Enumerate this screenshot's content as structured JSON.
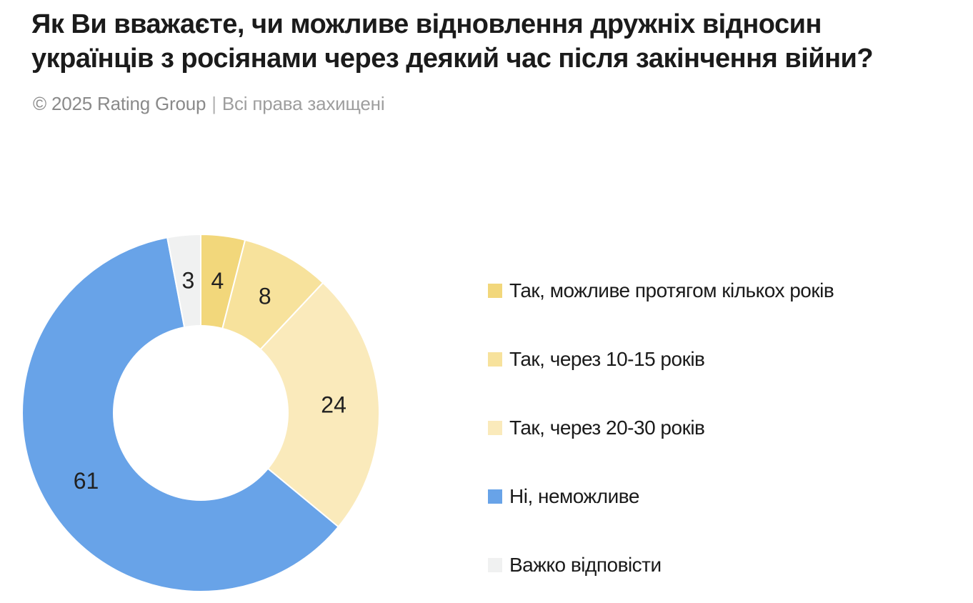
{
  "header": {
    "title_lines": [
      "Як Ви вважаєте, чи можливе відновлення дружніх відносин",
      "українців з росіянами через деякий час після закінчення війни?"
    ],
    "copyright": "© 2025 Rating Group",
    "separator": "|",
    "rights_text": "Всі права захищені"
  },
  "chart_data": {
    "type": "pie",
    "variant": "donut",
    "title": "Як Ви вважаєте, чи можливе відновлення дружніх відносин українців з росіянами через деякий час після закінчення війни?",
    "unit": "percent",
    "categories": [
      "Так, можливе протягом кількох років",
      "Так, через 10-15 років",
      "Так, через 20-30 років",
      "Ні, неможливе",
      "Важко відповісти"
    ],
    "values": [
      4,
      8,
      24,
      61,
      3
    ],
    "colors": [
      "#F2D77B",
      "#F7E29C",
      "#FAEABB",
      "#68A3E8",
      "#F0F1F1"
    ],
    "start_angle_deg": 0,
    "direction": "clockwise",
    "inner_radius_ratio": 0.49,
    "slice_gap_color": "#ffffff",
    "data_label_color": "#212121",
    "legend_position": "right"
  }
}
